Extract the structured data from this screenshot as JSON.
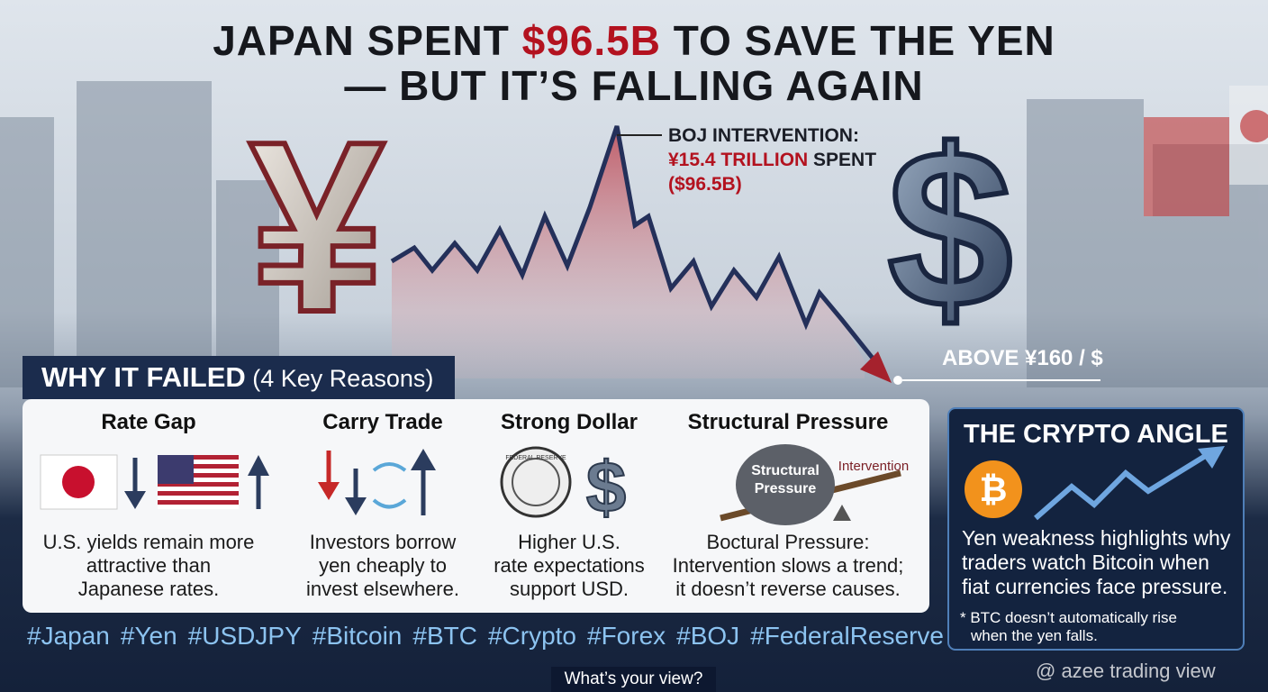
{
  "header": {
    "title_before": "JAPAN SPENT ",
    "title_highlight": "$96.5B",
    "title_after": " TO SAVE THE YEN",
    "title_line2": "— BUT IT’S FALLING AGAIN"
  },
  "icons": {
    "yen": "¥",
    "dollar": "$",
    "bitcoin": "₿",
    "small_dollar": "$"
  },
  "annotation": {
    "line1": "BOJ INTERVENTION:",
    "amount": "¥15.4 TRILLION",
    "amount_suffix": " SPENT",
    "usd": "($96.5B)"
  },
  "level_label": "ABOVE ¥160 / $",
  "why_failed": {
    "heading": "WHY IT FAILED",
    "subheading": " (4 Key Reasons)",
    "reasons": [
      {
        "title": "Rate Gap",
        "text": [
          "U.S. yields remain more",
          "attractive than",
          "Japanese rates."
        ]
      },
      {
        "title": "Carry Trade",
        "text": [
          "Investors borrow",
          "yen cheaply to",
          "invest elsewhere."
        ]
      },
      {
        "title": "Strong Dollar",
        "text": [
          "Higher U.S.",
          "rate expectations",
          "support USD."
        ]
      },
      {
        "title": "Structural Pressure",
        "text": [
          "Boctural Pressure:",
          "Intervention slows a trend;",
          "it doesn’t reverse causes."
        ]
      }
    ],
    "rock_label": [
      "Structural",
      "Pressure"
    ],
    "lever_label": "Intervention",
    "seal_label": "FEDERAL RESERVE"
  },
  "crypto": {
    "title": "THE CRYPTO ANGLE",
    "text": [
      "Yen weakness highlights why",
      "traders watch Bitcoin when",
      "fiat currencies face pressure."
    ],
    "note": [
      "* BTC doesn’t automatically rise",
      "when the yen falls."
    ]
  },
  "hashtags": [
    "#Japan",
    "#Yen",
    "#USDJPY",
    "#Bitcoin",
    "#BTC",
    "#Crypto",
    "#Forex",
    "#BOJ",
    "#FederalReserve"
  ],
  "footer": {
    "prompt": "What’s your view?",
    "watermark": "@ azee trading view"
  }
}
